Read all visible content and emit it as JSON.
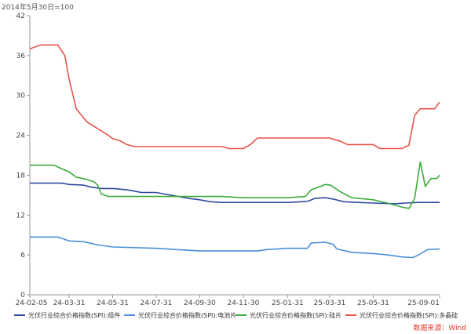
{
  "unit_note": "2014年5月30日=100",
  "source_note": "数据来源：Wind",
  "chart_data": {
    "type": "line",
    "title": "",
    "xlabel": "",
    "ylabel": "",
    "ylim": [
      0,
      42
    ],
    "yticks": [
      0,
      6,
      12,
      18,
      24,
      30,
      36,
      42
    ],
    "xlim": [
      "2024-02-05",
      "2025-09-01"
    ],
    "xticks": [
      "24-02-05",
      "24-03-31",
      "24-05-31",
      "24-07-31",
      "24-09-30",
      "24-11-30",
      "25-01-31",
      "25-03-31",
      "25-05-31",
      "25-09-01"
    ],
    "grid": false,
    "legend": "bottom",
    "colors": {
      "组件": "#2e4a9e",
      "电池片": "#4a90d9",
      "硅片": "#3cab3c",
      "多晶硅": "#e5544a"
    },
    "series": [
      {
        "name": "光伏行业综合价格指数(SPI):组件",
        "color": "#2e4a9e",
        "points": [
          [
            "2024-02-05",
            16.8
          ],
          [
            "2024-03-10",
            16.8
          ],
          [
            "2024-03-20",
            16.8
          ],
          [
            "2024-04-01",
            16.6
          ],
          [
            "2024-04-20",
            16.5
          ],
          [
            "2024-05-01",
            16.2
          ],
          [
            "2024-05-15",
            16.0
          ],
          [
            "2024-06-01",
            16.0
          ],
          [
            "2024-06-20",
            15.8
          ],
          [
            "2024-07-01",
            15.6
          ],
          [
            "2024-07-10",
            15.4
          ],
          [
            "2024-07-31",
            15.4
          ],
          [
            "2024-08-20",
            15.0
          ],
          [
            "2024-09-15",
            14.5
          ],
          [
            "2024-09-30",
            14.3
          ],
          [
            "2024-10-15",
            14.0
          ],
          [
            "2024-11-01",
            13.9
          ],
          [
            "2024-11-30",
            13.9
          ],
          [
            "2025-01-01",
            13.9
          ],
          [
            "2025-01-31",
            13.9
          ],
          [
            "2025-02-20",
            14.0
          ],
          [
            "2025-03-01",
            14.1
          ],
          [
            "2025-03-10",
            14.5
          ],
          [
            "2025-03-25",
            14.6
          ],
          [
            "2025-04-05",
            14.4
          ],
          [
            "2025-04-20",
            14.0
          ],
          [
            "2025-05-10",
            13.9
          ],
          [
            "2025-06-01",
            13.8
          ],
          [
            "2025-06-30",
            13.7
          ],
          [
            "2025-07-15",
            13.8
          ],
          [
            "2025-08-01",
            13.9
          ],
          [
            "2025-09-01",
            13.9
          ]
        ]
      },
      {
        "name": "光伏行业综合价格指数(SPI):电池片",
        "color": "#4a90d9",
        "points": [
          [
            "2024-02-05",
            8.7
          ],
          [
            "2024-03-15",
            8.7
          ],
          [
            "2024-03-31",
            8.1
          ],
          [
            "2024-04-20",
            8.0
          ],
          [
            "2024-05-10",
            7.5
          ],
          [
            "2024-05-31",
            7.2
          ],
          [
            "2024-06-30",
            7.1
          ],
          [
            "2024-07-31",
            7.0
          ],
          [
            "2024-08-31",
            6.8
          ],
          [
            "2024-09-30",
            6.6
          ],
          [
            "2024-10-31",
            6.6
          ],
          [
            "2024-11-30",
            6.6
          ],
          [
            "2024-12-20",
            6.6
          ],
          [
            "2025-01-01",
            6.8
          ],
          [
            "2025-01-31",
            7.0
          ],
          [
            "2025-02-28",
            7.0
          ],
          [
            "2025-03-05",
            7.8
          ],
          [
            "2025-03-25",
            7.9
          ],
          [
            "2025-04-05",
            7.6
          ],
          [
            "2025-04-10",
            6.9
          ],
          [
            "2025-05-01",
            6.4
          ],
          [
            "2025-05-31",
            6.2
          ],
          [
            "2025-06-20",
            6.0
          ],
          [
            "2025-07-10",
            5.7
          ],
          [
            "2025-07-25",
            5.6
          ],
          [
            "2025-08-01",
            5.9
          ],
          [
            "2025-08-15",
            6.8
          ],
          [
            "2025-09-01",
            6.9
          ]
        ]
      },
      {
        "name": "光伏行业综合价格指数(SPI):硅片",
        "color": "#3cab3c",
        "points": [
          [
            "2024-02-05",
            19.5
          ],
          [
            "2024-03-10",
            19.5
          ],
          [
            "2024-03-20",
            19.0
          ],
          [
            "2024-03-31",
            18.5
          ],
          [
            "2024-04-10",
            17.7
          ],
          [
            "2024-04-20",
            17.5
          ],
          [
            "2024-05-05",
            17.0
          ],
          [
            "2024-05-10",
            16.5
          ],
          [
            "2024-05-15",
            15.2
          ],
          [
            "2024-05-25",
            14.8
          ],
          [
            "2024-06-30",
            14.8
          ],
          [
            "2024-07-31",
            14.8
          ],
          [
            "2024-08-31",
            14.8
          ],
          [
            "2024-09-30",
            14.8
          ],
          [
            "2024-10-31",
            14.8
          ],
          [
            "2024-11-30",
            14.6
          ],
          [
            "2025-01-31",
            14.6
          ],
          [
            "2025-02-25",
            14.8
          ],
          [
            "2025-03-05",
            15.8
          ],
          [
            "2025-03-15",
            16.2
          ],
          [
            "2025-03-25",
            16.6
          ],
          [
            "2025-04-01",
            16.5
          ],
          [
            "2025-04-15",
            15.5
          ],
          [
            "2025-05-01",
            14.6
          ],
          [
            "2025-05-31",
            14.3
          ],
          [
            "2025-06-20",
            13.8
          ],
          [
            "2025-07-10",
            13.2
          ],
          [
            "2025-07-20",
            13.0
          ],
          [
            "2025-07-28",
            14.5
          ],
          [
            "2025-08-05",
            20.0
          ],
          [
            "2025-08-12",
            16.3
          ],
          [
            "2025-08-20",
            17.5
          ],
          [
            "2025-08-28",
            17.5
          ],
          [
            "2025-09-01",
            18.0
          ]
        ]
      },
      {
        "name": "光伏行业综合价格指数(SPI):多晶硅",
        "color": "#e5544a",
        "points": [
          [
            "2024-02-05",
            37.0
          ],
          [
            "2024-02-20",
            37.6
          ],
          [
            "2024-03-15",
            37.6
          ],
          [
            "2024-03-25",
            36.0
          ],
          [
            "2024-03-31",
            32.5
          ],
          [
            "2024-04-10",
            28.0
          ],
          [
            "2024-04-25",
            26.0
          ],
          [
            "2024-05-10",
            25.0
          ],
          [
            "2024-05-25",
            24.0
          ],
          [
            "2024-05-31",
            23.5
          ],
          [
            "2024-06-10",
            23.2
          ],
          [
            "2024-06-20",
            22.6
          ],
          [
            "2024-07-01",
            22.3
          ],
          [
            "2024-07-31",
            22.3
          ],
          [
            "2024-08-31",
            22.3
          ],
          [
            "2024-09-30",
            22.3
          ],
          [
            "2024-10-31",
            22.3
          ],
          [
            "2024-11-10",
            22.0
          ],
          [
            "2024-11-30",
            22.0
          ],
          [
            "2024-12-10",
            22.6
          ],
          [
            "2024-12-20",
            23.6
          ],
          [
            "2025-01-31",
            23.6
          ],
          [
            "2025-02-28",
            23.6
          ],
          [
            "2025-03-31",
            23.6
          ],
          [
            "2025-04-15",
            23.1
          ],
          [
            "2025-04-25",
            22.6
          ],
          [
            "2025-05-31",
            22.6
          ],
          [
            "2025-06-10",
            22.0
          ],
          [
            "2025-06-30",
            22.0
          ],
          [
            "2025-07-10",
            22.0
          ],
          [
            "2025-07-20",
            22.5
          ],
          [
            "2025-07-28",
            27.0
          ],
          [
            "2025-08-05",
            28.0
          ],
          [
            "2025-08-25",
            28.0
          ],
          [
            "2025-09-01",
            29.0
          ]
        ]
      }
    ]
  }
}
